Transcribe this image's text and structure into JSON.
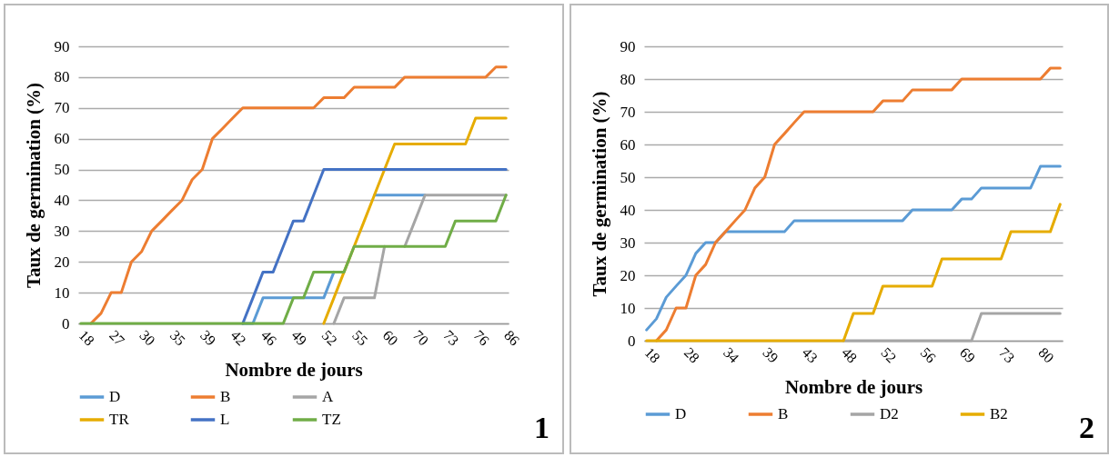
{
  "chart_data": [
    {
      "type": "line",
      "xlabel": "Nombre de jours",
      "ylabel": "Taux de germination (%)",
      "categories": [
        "18",
        null,
        null,
        "27",
        null,
        null,
        "30",
        null,
        null,
        "35",
        null,
        null,
        "39",
        null,
        null,
        "42",
        null,
        null,
        "46",
        null,
        null,
        "49",
        null,
        null,
        "52",
        null,
        null,
        "55",
        null,
        null,
        "60",
        null,
        null,
        "70",
        null,
        null,
        "73",
        null,
        null,
        "76",
        null,
        null,
        "86"
      ],
      "series": [
        {
          "name": "D",
          "color": "#5b9bd5",
          "values": [
            null,
            null,
            null,
            null,
            null,
            null,
            null,
            null,
            null,
            null,
            null,
            null,
            null,
            null,
            null,
            null,
            0,
            0,
            8.3,
            8.3,
            8.3,
            8.3,
            8.3,
            8.3,
            8.3,
            16.7,
            null,
            null,
            null,
            41.7,
            41.7,
            41.7,
            41.7,
            41.7,
            41.7,
            null,
            null,
            null,
            null,
            null,
            null,
            null,
            null
          ]
        },
        {
          "name": "B",
          "color": "#ed7d31",
          "values": [
            null,
            0,
            3.3,
            10,
            10,
            20,
            23.3,
            30,
            33.3,
            36.7,
            40,
            46.7,
            50,
            60,
            63.3,
            66.7,
            70,
            70,
            70,
            70,
            70,
            70,
            70,
            70,
            73.3,
            73.3,
            73.3,
            76.7,
            76.7,
            76.7,
            76.7,
            76.7,
            80,
            80,
            80,
            80,
            80,
            80,
            80,
            80,
            80,
            83.3,
            83.3
          ]
        },
        {
          "name": "A",
          "color": "#a5a5a5",
          "values": [
            null,
            null,
            null,
            null,
            null,
            null,
            null,
            null,
            null,
            null,
            null,
            null,
            null,
            null,
            null,
            null,
            null,
            null,
            null,
            null,
            null,
            null,
            null,
            null,
            null,
            0,
            8.3,
            8.3,
            8.3,
            8.3,
            25,
            null,
            25,
            33.3,
            41.7,
            41.7,
            41.7,
            41.7,
            41.7,
            41.7,
            41.7,
            41.7,
            41.7
          ]
        },
        {
          "name": "TR",
          "color": "#e6ac00",
          "values": [
            null,
            null,
            null,
            null,
            null,
            null,
            null,
            null,
            null,
            null,
            null,
            null,
            null,
            null,
            null,
            null,
            null,
            null,
            null,
            null,
            null,
            null,
            null,
            null,
            0,
            8.3,
            16.7,
            25,
            33.3,
            41.7,
            50,
            58.3,
            58.3,
            58.3,
            58.3,
            58.3,
            58.3,
            58.3,
            58.3,
            66.7,
            66.7,
            66.7,
            66.7
          ]
        },
        {
          "name": "L",
          "color": "#4472c4",
          "values": [
            null,
            null,
            null,
            null,
            null,
            null,
            null,
            null,
            null,
            null,
            null,
            null,
            null,
            null,
            null,
            null,
            0,
            8.3,
            16.7,
            16.7,
            25,
            33.3,
            33.3,
            41.7,
            50,
            50,
            50,
            50,
            50,
            50,
            50,
            50,
            50,
            50,
            50,
            50,
            50,
            50,
            50,
            50,
            50,
            50,
            50
          ]
        },
        {
          "name": "TZ",
          "color": "#70ad47",
          "values": [
            0,
            0,
            0,
            0,
            0,
            0,
            0,
            0,
            0,
            0,
            0,
            0,
            0,
            0,
            0,
            0,
            0,
            0,
            0,
            0,
            0,
            8.3,
            8.3,
            16.7,
            16.7,
            16.7,
            16.7,
            25,
            25,
            25,
            25,
            25,
            25,
            25,
            25,
            25,
            25,
            33.3,
            33.3,
            33.3,
            33.3,
            33.3,
            41.7
          ]
        }
      ],
      "ylim": [
        0,
        90
      ],
      "yticks": [
        0,
        10,
        20,
        30,
        40,
        50,
        60,
        70,
        80,
        90
      ],
      "grid": "y",
      "legend": "bottom",
      "annotations": [
        "1"
      ]
    },
    {
      "type": "line",
      "xlabel": "Nombre de jours",
      "ylabel": "Taux de germination (%)",
      "categories": [
        "18",
        null,
        null,
        null,
        "28",
        null,
        null,
        null,
        "34",
        null,
        null,
        null,
        "39",
        null,
        null,
        null,
        "43",
        null,
        null,
        null,
        "48",
        null,
        null,
        null,
        "52",
        null,
        null,
        null,
        "56",
        null,
        null,
        null,
        "69",
        null,
        null,
        null,
        "73",
        null,
        null,
        null,
        "80",
        null,
        null
      ],
      "series": [
        {
          "name": "D",
          "color": "#5b9bd5",
          "values": [
            3.3,
            6.7,
            13.3,
            16.7,
            20,
            26.7,
            30,
            30,
            33.3,
            33.3,
            33.3,
            33.3,
            33.3,
            33.3,
            33.3,
            36.7,
            36.7,
            36.7,
            36.7,
            36.7,
            36.7,
            36.7,
            36.7,
            36.7,
            36.7,
            36.7,
            36.7,
            40,
            40,
            40,
            40,
            40,
            43.3,
            43.3,
            46.7,
            46.7,
            46.7,
            46.7,
            46.7,
            46.7,
            53.3,
            53.3,
            53.3
          ]
        },
        {
          "name": "B",
          "color": "#ed7d31",
          "values": [
            null,
            0,
            3.3,
            10,
            10,
            20,
            23.3,
            30,
            33.3,
            36.7,
            40,
            46.7,
            50,
            60,
            63.3,
            66.7,
            70,
            70,
            70,
            70,
            70,
            70,
            70,
            70,
            73.3,
            73.3,
            73.3,
            76.7,
            76.7,
            76.7,
            76.7,
            76.7,
            80,
            80,
            80,
            80,
            80,
            80,
            80,
            80,
            80,
            83.3,
            83.3
          ]
        },
        {
          "name": "D2",
          "color": "#a5a5a5",
          "values": [
            null,
            null,
            null,
            null,
            null,
            null,
            null,
            null,
            null,
            null,
            null,
            null,
            null,
            null,
            null,
            null,
            null,
            null,
            null,
            null,
            0,
            0,
            0,
            0,
            0,
            0,
            0,
            0,
            0,
            0,
            0,
            0,
            0,
            0,
            8.3,
            8.3,
            8.3,
            8.3,
            8.3,
            8.3,
            8.3,
            8.3,
            8.3
          ]
        },
        {
          "name": "B2",
          "color": "#e6ac00",
          "values": [
            0,
            0,
            0,
            0,
            0,
            0,
            0,
            0,
            0,
            0,
            0,
            0,
            0,
            0,
            0,
            0,
            0,
            0,
            0,
            0,
            0,
            8.3,
            8.3,
            8.3,
            16.7,
            16.7,
            16.7,
            16.7,
            16.7,
            16.7,
            25,
            25,
            25,
            25,
            25,
            25,
            25,
            33.3,
            33.3,
            33.3,
            33.3,
            33.3,
            41.7
          ]
        }
      ],
      "ylim": [
        0,
        90
      ],
      "yticks": [
        0,
        10,
        20,
        30,
        40,
        50,
        60,
        70,
        80,
        90
      ],
      "grid": "y",
      "legend": "bottom",
      "annotations": [
        "2"
      ]
    }
  ]
}
